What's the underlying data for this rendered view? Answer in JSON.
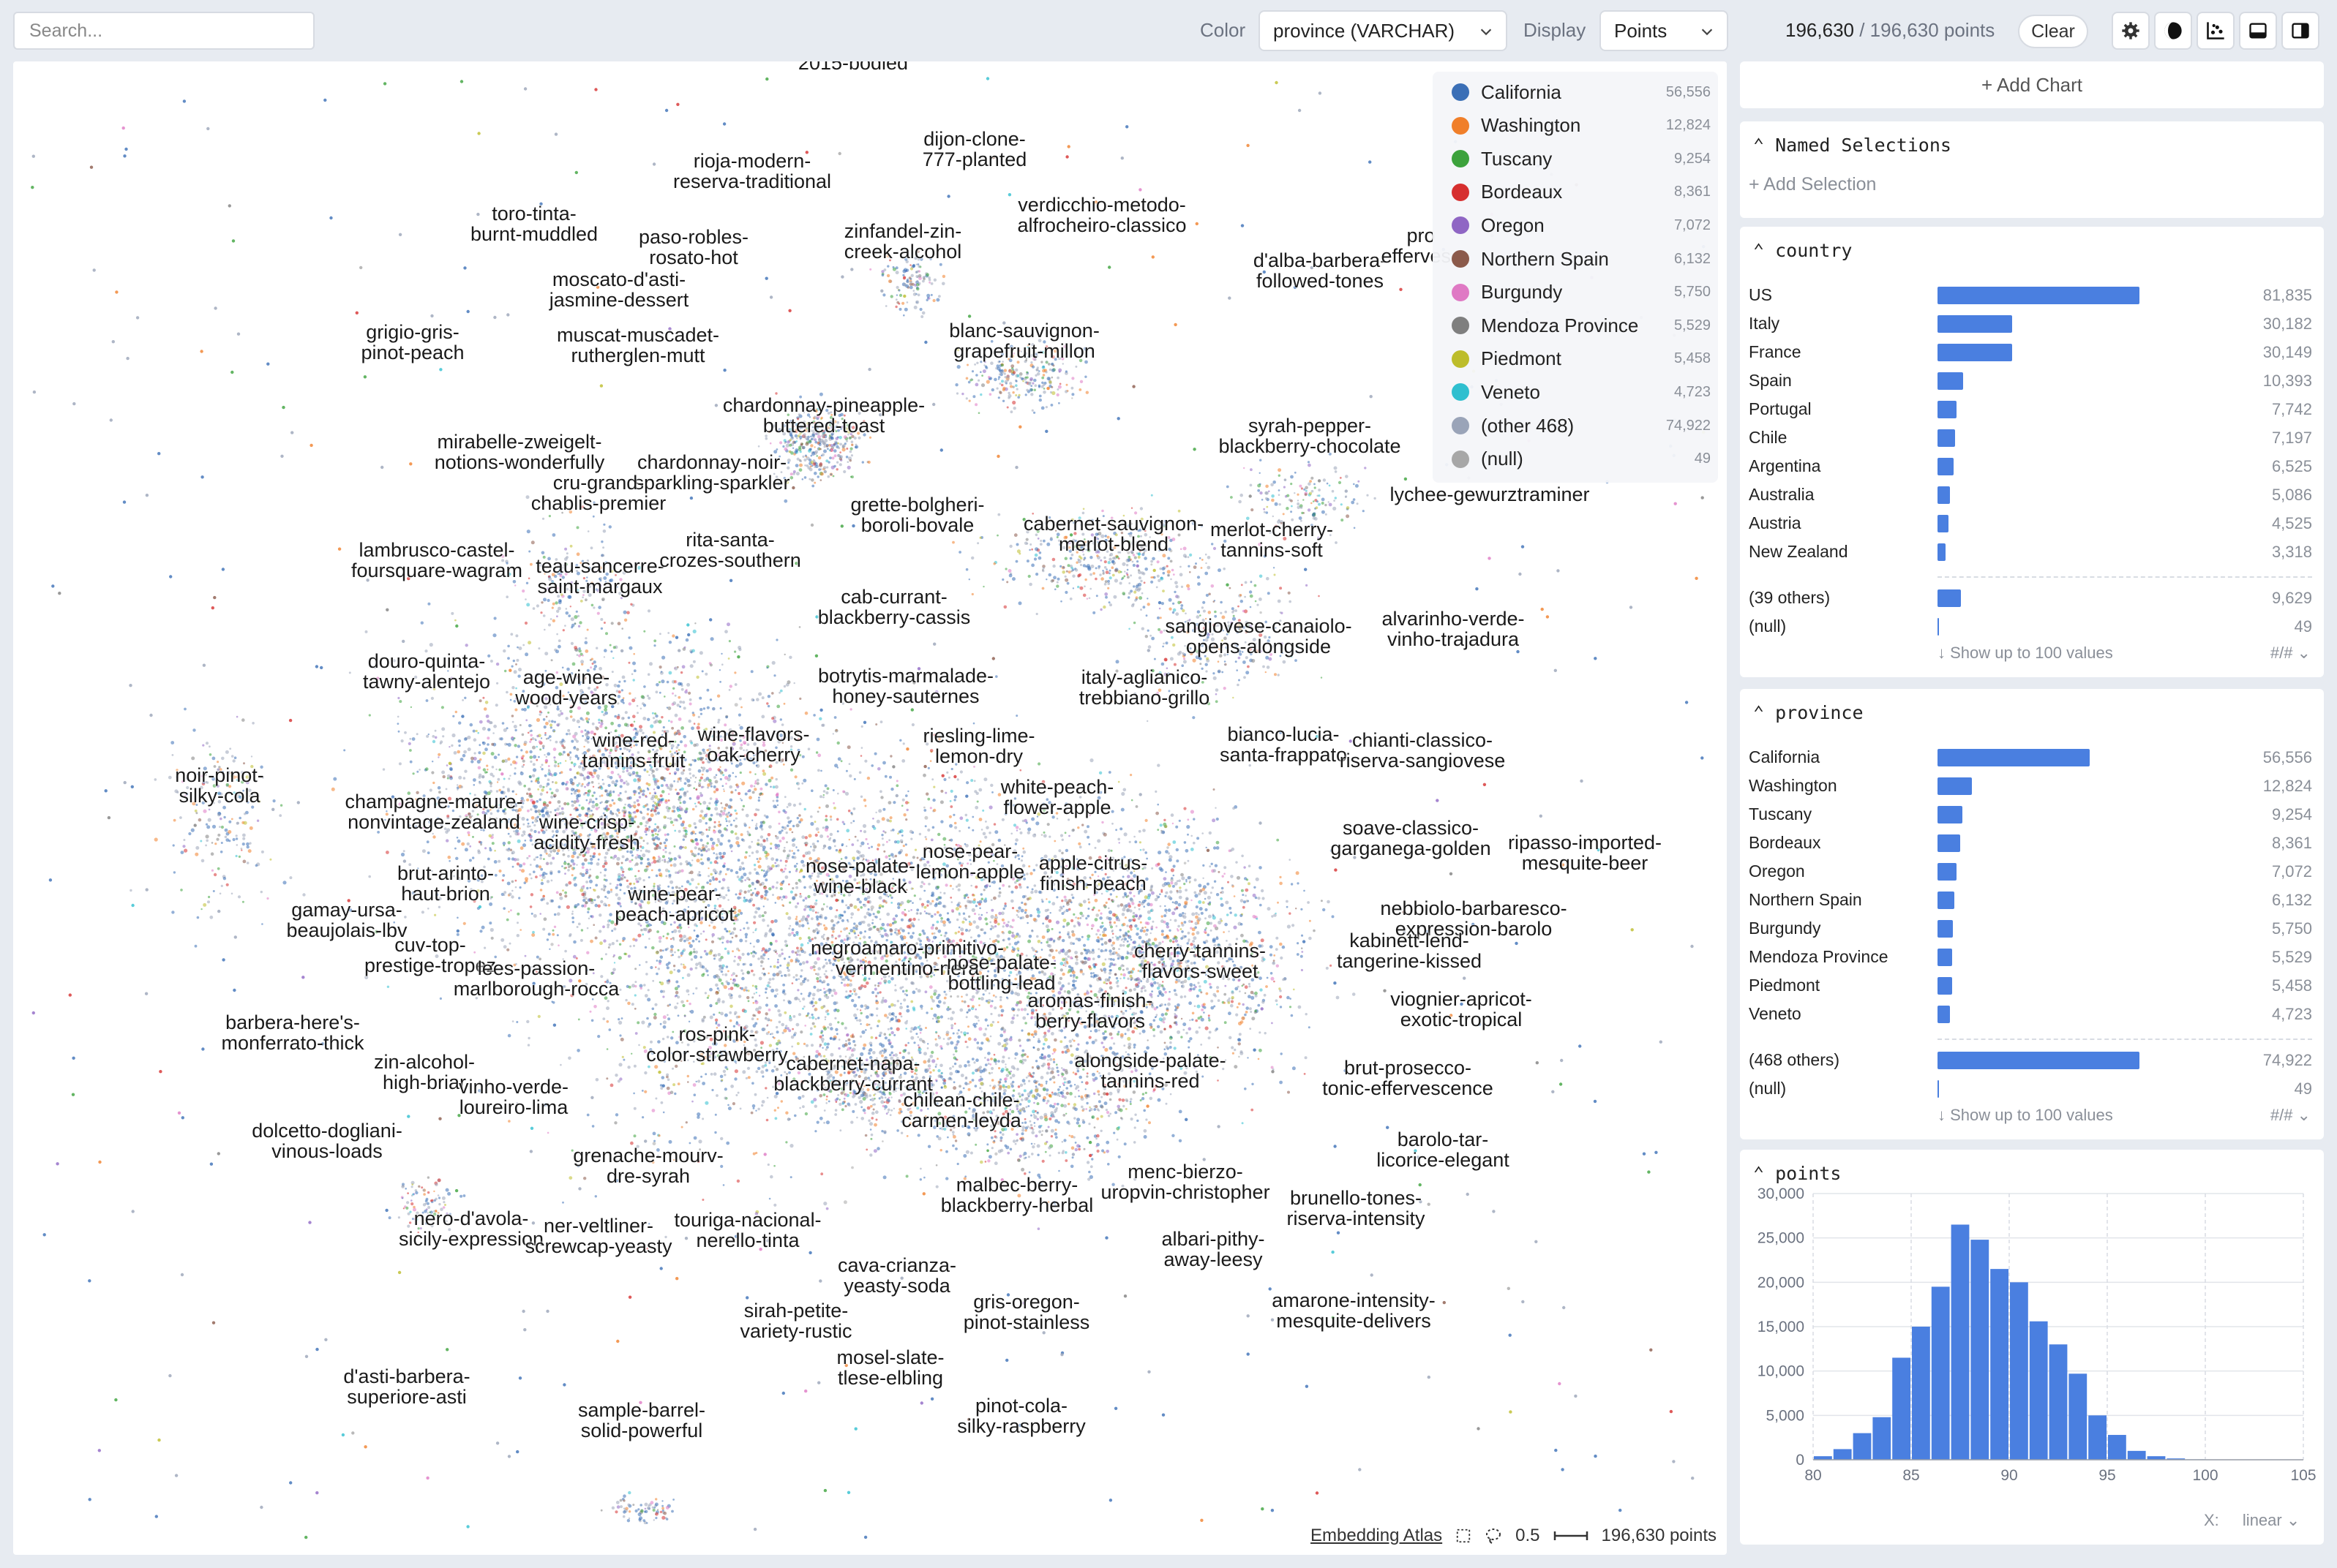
{
  "toolbar": {
    "search_placeholder": "Search...",
    "color_label": "Color",
    "color_value": "province (VARCHAR)",
    "display_label": "Display",
    "display_value": "Points",
    "count_selected": "196,630",
    "count_total": "/ 196,630 points",
    "clear_label": "Clear",
    "icons": [
      "gear-icon",
      "theme-icon",
      "scatter-icon",
      "bottom-panel-icon",
      "side-panel-icon"
    ]
  },
  "legend": [
    {
      "name": "California",
      "count": "56,556",
      "color": "#3b6fb6"
    },
    {
      "name": "Washington",
      "count": "12,824",
      "color": "#f07f2a"
    },
    {
      "name": "Tuscany",
      "count": "9,254",
      "color": "#3ca23c"
    },
    {
      "name": "Bordeaux",
      "count": "8,361",
      "color": "#d62f2f"
    },
    {
      "name": "Oregon",
      "count": "7,072",
      "color": "#8f66c4"
    },
    {
      "name": "Northern Spain",
      "count": "6,132",
      "color": "#8b5a4b"
    },
    {
      "name": "Burgundy",
      "count": "5,750",
      "color": "#df79c4"
    },
    {
      "name": "Mendoza Province",
      "count": "5,529",
      "color": "#7f7f7f"
    },
    {
      "name": "Piedmont",
      "count": "5,458",
      "color": "#bdbd2b"
    },
    {
      "name": "Veneto",
      "count": "4,723",
      "color": "#2fbfcf"
    },
    {
      "name": "(other 468)",
      "count": "74,922",
      "color": "#9aa4b8"
    },
    {
      "name": "(null)",
      "count": "49",
      "color": "#a7a7a7"
    }
  ],
  "cluster_labels": [
    "2015-bodied",
    "rioja-modern-\nreserva-traditional",
    "dijon-clone-\n777-planted",
    "toro-tinta-\nburnt-muddled",
    "paso-robles-\nrosato-hot",
    "zinfandel-zin-\ncreek-alcohol",
    "verdicchio-metodo-\nalfrocheiro-classico",
    "d'alba-barbera-\nfollowed-tones",
    "pro\neffervesc",
    "moscato-d'asti-\njasmine-dessert",
    "grigio-gris-\npinot-peach",
    "muscat-muscadet-\nrutherglen-mutt",
    "blanc-sauvignon-\ngrapefruit-millon",
    "chardonnay-pineapple-\nbuttered-toast",
    "syrah-pepper-\nblackberry-chocolate",
    "mirabelle-zweigelt-\nnotions-wonderfully",
    "chardonnay-noir-\nsparkling-sparkler",
    "cru-grand-\nchablis-premier",
    "lychee-gewurztraminer",
    "grette-bolgheri-\nboroli-bovale",
    "cabernet-sauvignon-\nmerlot-blend",
    "merlot-cherry-\ntannins-soft",
    "lambrusco-castel-\nfoursquare-wagram",
    "teau-sancerre-\nsaint-margaux",
    "rita-santa-\ncrozes-southern",
    "cab-currant-\nblackberry-cassis",
    "sangiovese-canaiolo-\nopens-alongside",
    "alvarinho-verde-\nvinho-trajadura",
    "douro-quinta-\ntawny-alentejo",
    "age-wine-\nwood-years",
    "botrytis-marmalade-\nhoney-sauternes",
    "italy-aglianico-\ntrebbiano-grillo",
    "wine-red-\ntannins-fruit",
    "wine-flavors-\noak-cherry",
    "riesling-lime-\nlemon-dry",
    "bianco-lucia-\nsanta-frappato",
    "chianti-classico-\nriserva-sangiovese",
    "noir-pinot-\nsilky-cola",
    "champagne-mature-\nnonvintage-zealand",
    "wine-crisp-\nacidity-fresh",
    "white-peach-\nflower-apple",
    "soave-classico-\ngarganega-golden",
    "ripasso-imported-\nmesquite-beer",
    "brut-arinto-\nhaut-brion",
    "nose-palate-\nwine-black",
    "nose-pear-\nlemon-apple",
    "apple-citrus-\nfinish-peach",
    "gamay-ursa-\nbeaujolais-lbv",
    "wine-pear-\npeach-apricot",
    "nebbiolo-barbaresco-\nexpression-barolo",
    "cuv-top-\nprestige-tropez",
    "kabinett-lend-\ntangerine-kissed",
    "negroamaro-primitivo-\nvermentino-nera",
    "lees-passion-\nmarlborough-rocca",
    "nose-palate-\nbottling-lead",
    "cherry-tannins-\nflavors-sweet",
    "viognier-apricot-\nexotic-tropical",
    "aromas-finish-\nberry-flavors",
    "barbera-here's-\nmonferrato-thick",
    "ros-pink-\ncolor-strawberry",
    "zin-alcohol-\nhigh-briar",
    "cabernet-napa-\nblackberry-currant",
    "alongside-palate-\ntannins-red",
    "brut-prosecco-\ntonic-effervescence",
    "vinho-verde-\nloureiro-lima",
    "chilean-chile-\ncarmen-leyda",
    "dolcetto-dogliani-\nvinous-loads",
    "grenache-mourv-\ndre-syrah",
    "barolo-tar-\nlicorice-elegant",
    "menc-bierzo-\nuropvin-christopher",
    "malbec-berry-\nblackberry-herbal",
    "brunello-tones-\nriserva-intensity",
    "nero-d'avola-\nsicily-expression",
    "ner-veltliner-\nscrewcap-yeasty",
    "touriga-nacional-\nnerello-tinta",
    "albari-pithy-\naway-leesy",
    "cava-crianza-\nyeasty-soda",
    "gris-oregon-\npinot-stainless",
    "amarone-intensity-\nmesquite-delivers",
    "sirah-petite-\nvariety-rustic",
    "mosel-slate-\ntlese-elbling",
    "d'asti-barbera-\nsuperiore-asti",
    "sample-barrel-\nsolid-powerful",
    "pinot-cola-\nsilky-raspberry"
  ],
  "map_footer": {
    "brand": "Embedding Atlas",
    "scale": "0.5",
    "points": "196,630 points"
  },
  "right_panel": {
    "add_chart": "+ Add Chart",
    "named_selections": {
      "title": "Named Selections",
      "add_label": "+ Add Selection"
    },
    "country": {
      "title": "country",
      "rows": [
        {
          "label": "US",
          "value": "81,835",
          "n": 81835
        },
        {
          "label": "Italy",
          "value": "30,182",
          "n": 30182
        },
        {
          "label": "France",
          "value": "30,149",
          "n": 30149
        },
        {
          "label": "Spain",
          "value": "10,393",
          "n": 10393
        },
        {
          "label": "Portugal",
          "value": "7,742",
          "n": 7742
        },
        {
          "label": "Chile",
          "value": "7,197",
          "n": 7197
        },
        {
          "label": "Argentina",
          "value": "6,525",
          "n": 6525
        },
        {
          "label": "Australia",
          "value": "5,086",
          "n": 5086
        },
        {
          "label": "Austria",
          "value": "4,525",
          "n": 4525
        },
        {
          "label": "New Zealand",
          "value": "3,318",
          "n": 3318
        }
      ],
      "others": {
        "label": "(39 others)",
        "value": "9,629",
        "n": 9629
      },
      "null": {
        "label": "(null)",
        "value": "49",
        "n": 49
      },
      "show_more": "Show up to 100 values",
      "format": "#/#"
    },
    "province": {
      "title": "province",
      "rows": [
        {
          "label": "California",
          "value": "56,556",
          "n": 56556
        },
        {
          "label": "Washington",
          "value": "12,824",
          "n": 12824
        },
        {
          "label": "Tuscany",
          "value": "9,254",
          "n": 9254
        },
        {
          "label": "Bordeaux",
          "value": "8,361",
          "n": 8361
        },
        {
          "label": "Oregon",
          "value": "7,072",
          "n": 7072
        },
        {
          "label": "Northern Spain",
          "value": "6,132",
          "n": 6132
        },
        {
          "label": "Burgundy",
          "value": "5,750",
          "n": 5750
        },
        {
          "label": "Mendoza Province",
          "value": "5,529",
          "n": 5529
        },
        {
          "label": "Piedmont",
          "value": "5,458",
          "n": 5458
        },
        {
          "label": "Veneto",
          "value": "4,723",
          "n": 4723
        }
      ],
      "others": {
        "label": "(468 others)",
        "value": "74,922",
        "n": 74922
      },
      "null": {
        "label": "(null)",
        "value": "49",
        "n": 49
      },
      "show_more": "Show up to 100 values",
      "format": "#/#"
    },
    "points": {
      "title": "points",
      "scale_label": "X:",
      "scale_value": "linear"
    }
  },
  "chart_data": {
    "type": "bar",
    "title": "points",
    "x": [
      80,
      81,
      82,
      83,
      84,
      85,
      86,
      87,
      88,
      89,
      90,
      91,
      92,
      93,
      94,
      95,
      96,
      97,
      98,
      99,
      100
    ],
    "values": [
      400,
      1200,
      3000,
      4800,
      11500,
      15000,
      19500,
      26500,
      24800,
      21500,
      20000,
      15600,
      13000,
      9700,
      5000,
      2800,
      1000,
      400,
      150,
      50,
      20
    ],
    "xlim": [
      80,
      105
    ],
    "ylim": [
      0,
      30000
    ],
    "x_ticks": [
      "80",
      "85",
      "90",
      "95",
      "100",
      "105"
    ],
    "y_ticks": [
      "0",
      "5,000",
      "10,000",
      "15,000",
      "20,000",
      "25,000",
      "30,000"
    ],
    "bar_color": "#4a7fe0",
    "grid": true
  }
}
